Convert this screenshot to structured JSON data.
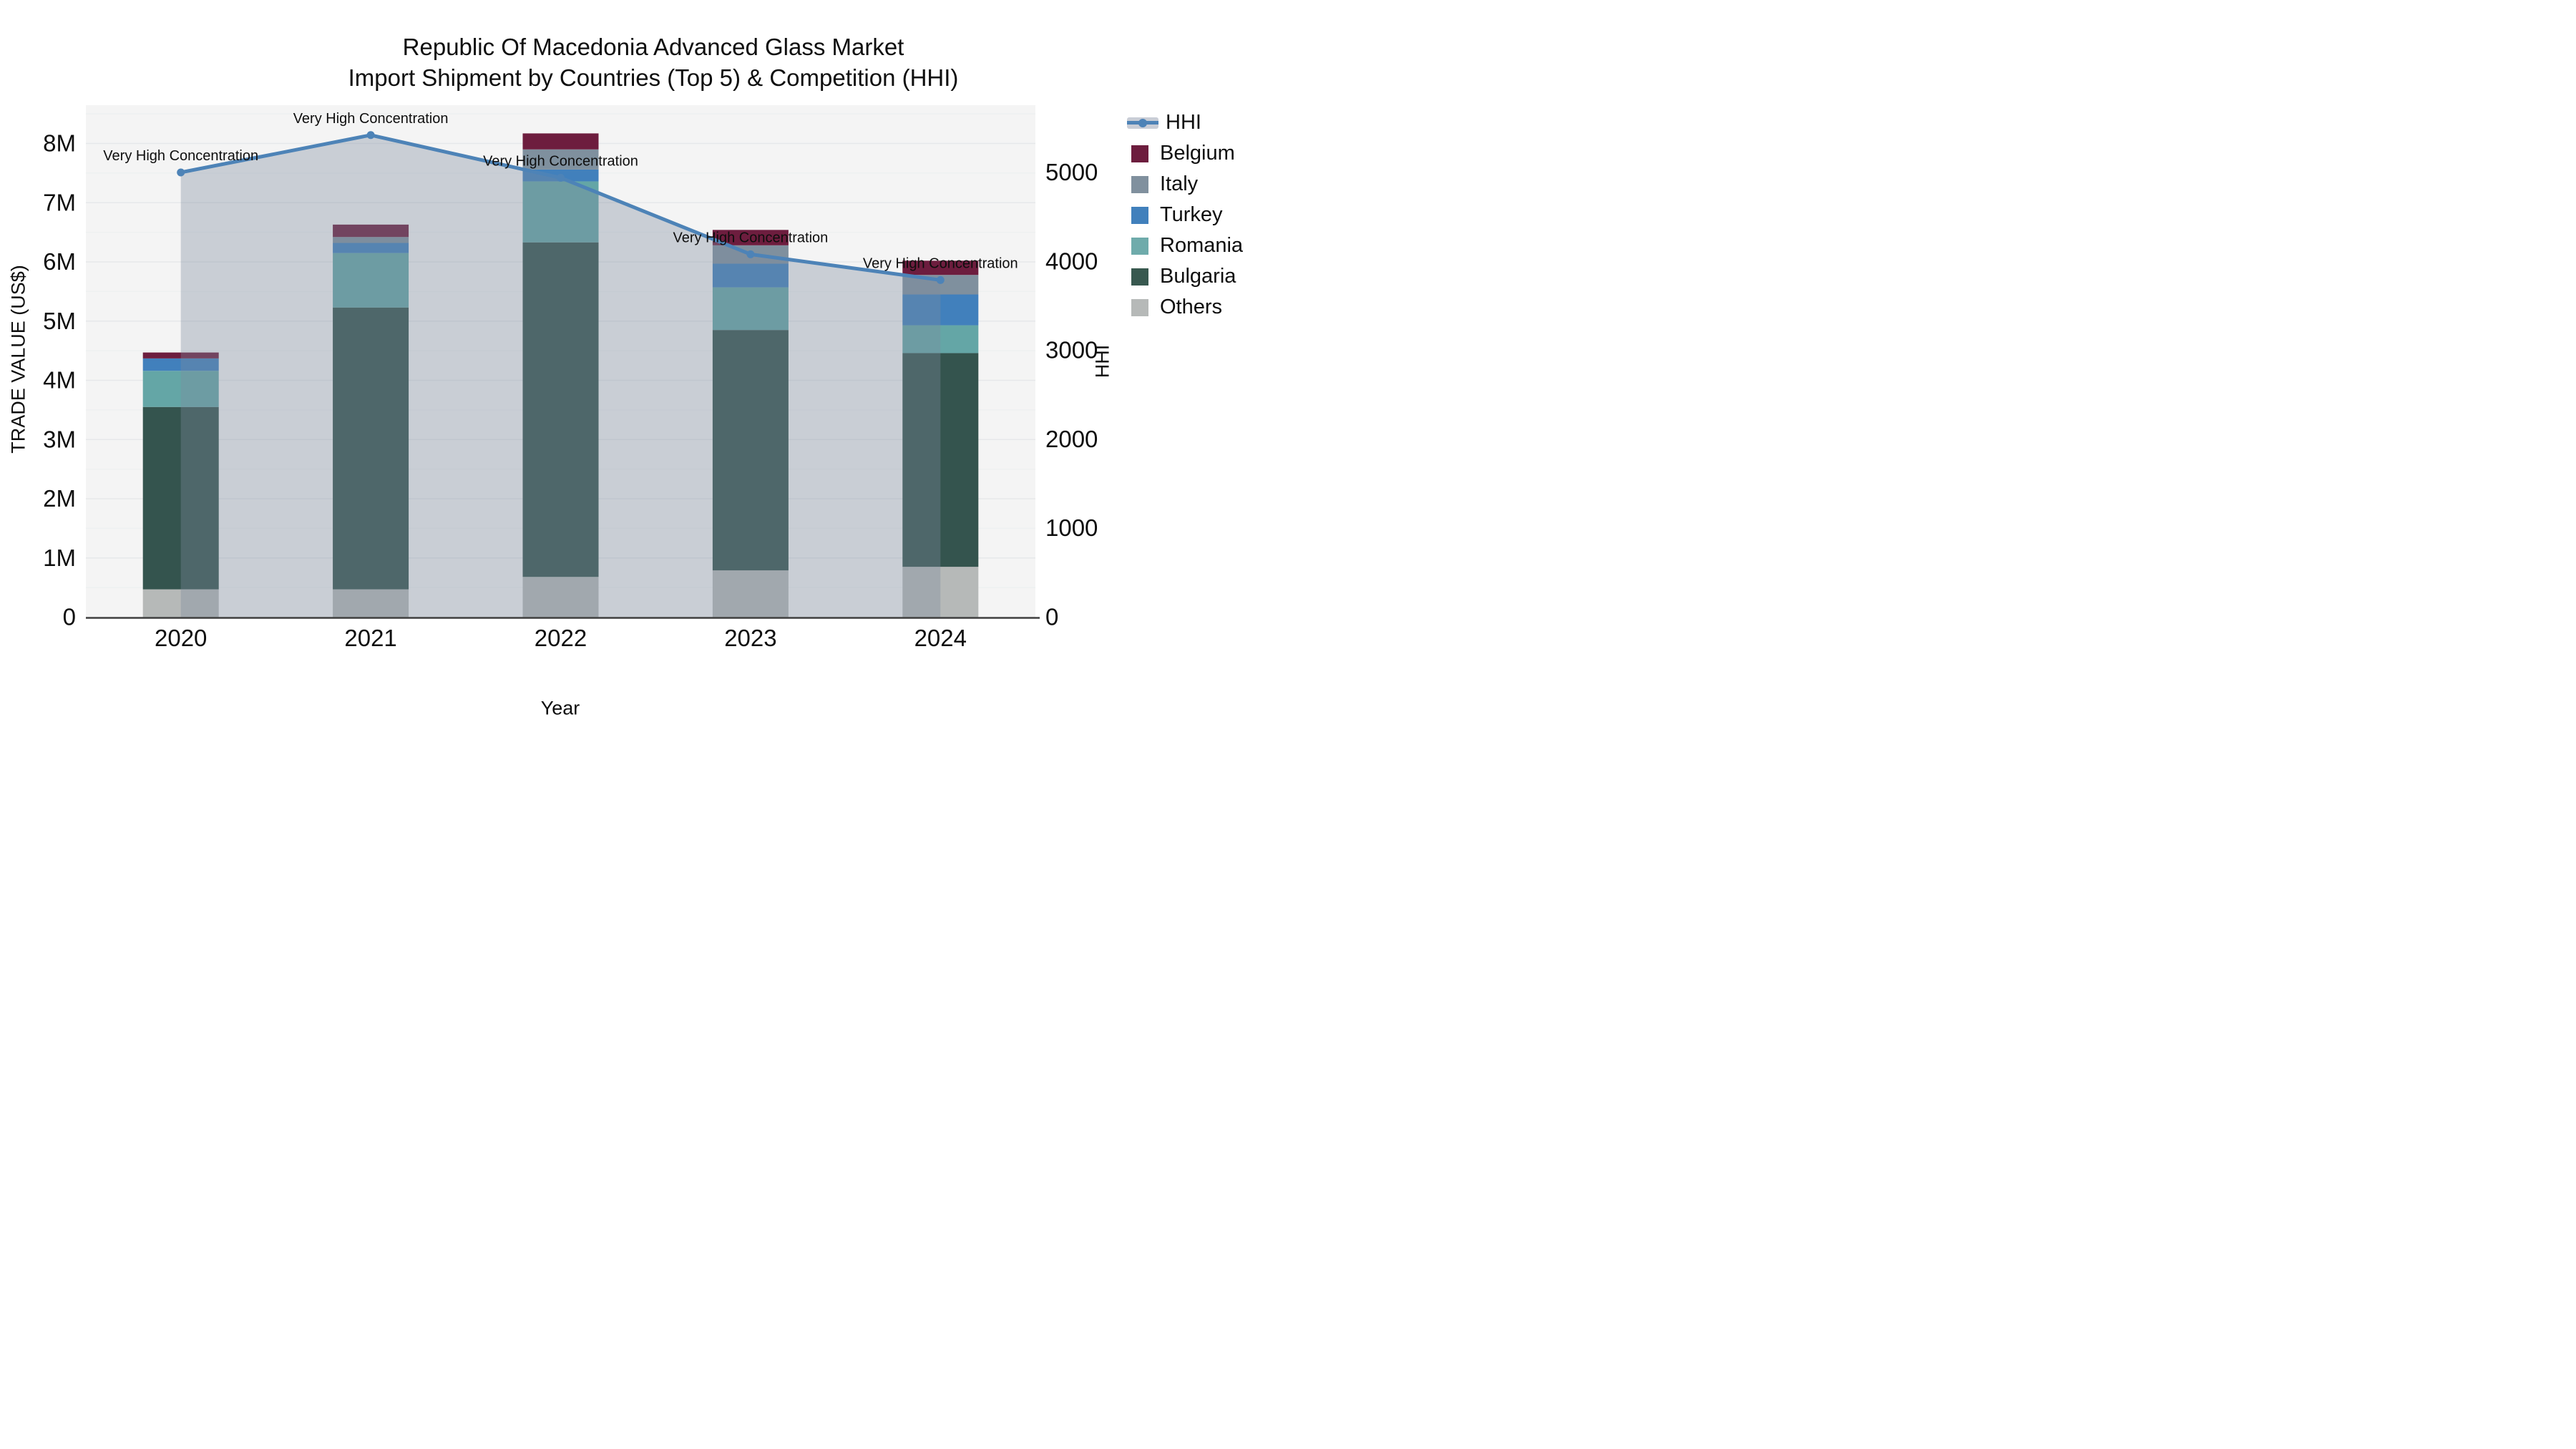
{
  "title": {
    "line1": "Republic Of Macedonia Advanced Glass Market",
    "line2": "Import Shipment by Countries (Top 5) & Competition (HHI)"
  },
  "axes": {
    "y_left": {
      "title": "TRADE VALUE (US$)",
      "tick_labels": [
        "0",
        "1M",
        "2M",
        "3M",
        "4M",
        "5M",
        "6M",
        "7M",
        "8M"
      ],
      "tick_values_M": [
        0,
        1,
        2,
        3,
        4,
        5,
        6,
        7,
        8
      ],
      "range_M": [
        0,
        8.64
      ]
    },
    "y_right": {
      "title": "HHI",
      "tick_labels": [
        "0",
        "1000",
        "2000",
        "3000",
        "4000",
        "5000"
      ],
      "tick_values": [
        0,
        1000,
        2000,
        3000,
        4000,
        5000
      ],
      "range": [
        0,
        5756
      ]
    },
    "x": {
      "title": "Year",
      "categories": [
        "2020",
        "2021",
        "2022",
        "2023",
        "2024"
      ]
    }
  },
  "chart_data": {
    "type": "combo-stacked-bar-line",
    "categories": [
      "2020",
      "2021",
      "2022",
      "2023",
      "2024"
    ],
    "bar_unit": "millions US$",
    "series": [
      {
        "name": "Others",
        "color": "#b6b9b8",
        "values": [
          0.47,
          0.47,
          0.68,
          0.79,
          0.85
        ]
      },
      {
        "name": "Bulgaria",
        "color": "#34544e",
        "values": [
          3.08,
          4.76,
          5.65,
          4.06,
          3.61
        ]
      },
      {
        "name": "Romania",
        "color": "#64a6a6",
        "values": [
          0.61,
          0.92,
          1.03,
          0.72,
          0.47
        ]
      },
      {
        "name": "Turkey",
        "color": "#4180bc",
        "values": [
          0.21,
          0.17,
          0.2,
          0.4,
          0.52
        ]
      },
      {
        "name": "Italy",
        "color": "#7f909e",
        "values": [
          0.0,
          0.1,
          0.34,
          0.31,
          0.33
        ]
      },
      {
        "name": "Belgium",
        "color": "#6d1d3e",
        "values": [
          0.1,
          0.21,
          0.27,
          0.26,
          0.24
        ]
      }
    ],
    "bar_totals_M": [
      4.47,
      6.63,
      8.17,
      6.54,
      6.02
    ],
    "hhi": {
      "name": "HHI",
      "values": [
        5000,
        5420,
        4940,
        4080,
        3790
      ],
      "line_color": "#4d83b7",
      "area_color": "#7d8a9d",
      "area_opacity": 0.36,
      "annotation_text": "Very High Concentration"
    },
    "annotations": [
      "Very High Concentration",
      "Very High Concentration",
      "Very High Concentration",
      "Very High Concentration",
      "Very High Concentration"
    ],
    "plot_background": "#f4f4f4",
    "grid_major_color": "#e6e8ea",
    "grid_minor_color": "#eef0f1",
    "axis_line_color": "#3f3f3f",
    "legend_position": "right"
  },
  "legend": {
    "items": [
      {
        "label": "HHI",
        "type": "line",
        "color": "#4d83b7"
      },
      {
        "label": "Belgium",
        "type": "box",
        "color": "#6d1d3e"
      },
      {
        "label": "Italy",
        "type": "box",
        "color": "#80909e"
      },
      {
        "label": "Turkey",
        "type": "box",
        "color": "#4180bc"
      },
      {
        "label": "Romania",
        "type": "box",
        "color": "#6fabab"
      },
      {
        "label": "Bulgaria",
        "type": "box",
        "color": "#38584f"
      },
      {
        "label": "Others",
        "type": "box",
        "color": "#b6b9b8"
      }
    ]
  }
}
